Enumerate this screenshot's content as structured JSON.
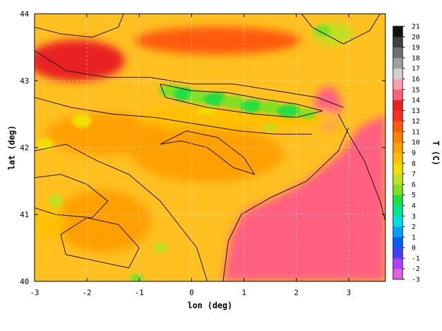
{
  "chart_data": {
    "type": "heatmap",
    "title": "",
    "xlabel": "lon (deg)",
    "ylabel": "lat (deg)",
    "xlim": [
      -3,
      3.7
    ],
    "ylim": [
      40,
      44
    ],
    "x_ticks": [
      -3,
      -2,
      -1,
      0,
      1,
      2,
      3
    ],
    "y_ticks": [
      40,
      41,
      42,
      43,
      44
    ],
    "x_tick_labels": [
      "-3",
      "-2",
      "-1",
      "0",
      "1",
      "2",
      "3"
    ],
    "y_tick_labels": [
      "40",
      "41",
      "42",
      "43",
      "44"
    ],
    "grid": true,
    "colorbar": {
      "label": "T (C)",
      "min": -3,
      "max": 21,
      "ticks": [
        -3,
        -2,
        -1,
        0,
        1,
        2,
        3,
        4,
        5,
        6,
        7,
        8,
        9,
        10,
        11,
        12,
        13,
        14,
        15,
        16,
        17,
        18,
        19,
        20,
        21
      ],
      "tick_labels": [
        "-3",
        "-2",
        "-1",
        "0",
        "1",
        "2",
        "3",
        "4",
        "5",
        "6",
        "7",
        "8",
        "9",
        "10",
        "11",
        "12",
        "13",
        "14",
        "15",
        "16",
        "17",
        "18",
        "19",
        "20",
        "21"
      ],
      "colors": [
        "#e060e0",
        "#b040ff",
        "#4040ff",
        "#0060ff",
        "#00a0ff",
        "#00e0e0",
        "#00e890",
        "#20e040",
        "#80e020",
        "#c0e020",
        "#f0e000",
        "#ffc000",
        "#ffa000",
        "#ff8000",
        "#ff5a10",
        "#ff3020",
        "#e82020",
        "#ff6080",
        "#ffa0b0",
        "#d0d0d0",
        "#a0a0a0",
        "#707070",
        "#404040",
        "#101010"
      ]
    },
    "features": {
      "sea_region": "east / south-east (lon > 0.6, lat < 42.3)",
      "sea_temperature": 14.5,
      "pyrenees_cold_band": {
        "lon_range": [
          -0.6,
          2.5
        ],
        "lat_range": [
          42.5,
          43.0
        ],
        "min_temperature": 4
      },
      "massif_central_cold": {
        "lon": 2.7,
        "lat": 43.7,
        "temperature": 6
      },
      "ebro_valley_temperature": 9.5,
      "north_atlantic_temperature": 12
    }
  }
}
